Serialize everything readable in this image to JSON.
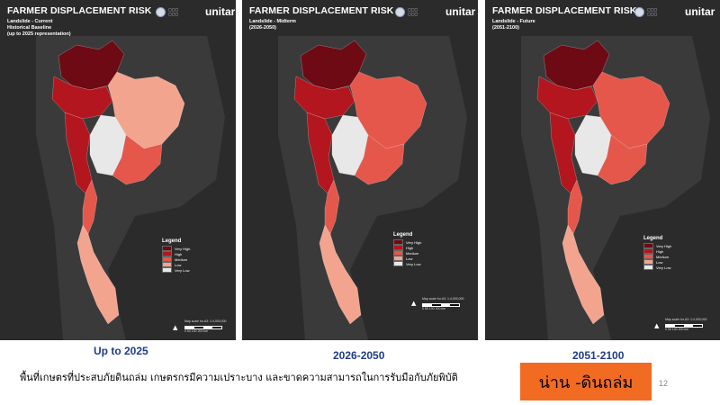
{
  "colors": {
    "very_high": "#6d0a14",
    "high": "#b3161e",
    "medium": "#e4574a",
    "low": "#f3a48e",
    "very_low": "#e8e8e8",
    "background": "#2b2b2b",
    "caption": "#1f3c88",
    "badge": "#f26b22"
  },
  "panels": [
    {
      "title": "FARMER DISPLACEMENT RISK",
      "subtitle": "Landslide - Current\nHistorical Baseline\n(up to 2025 representation)",
      "caption": "Up to 2025",
      "regions": {
        "north": "very_high",
        "northwest": "high",
        "northeast": "low",
        "central": "very_low",
        "west": "high",
        "east": "medium",
        "south_upper": "medium",
        "south_lower": "low"
      }
    },
    {
      "title": "FARMER DISPLACEMENT RISK",
      "subtitle": "Landslide - Midterm\n(2026-2050)",
      "caption": "2026-2050",
      "regions": {
        "north": "very_high",
        "northwest": "high",
        "northeast": "medium",
        "central": "very_low",
        "west": "high",
        "east": "medium",
        "south_upper": "medium",
        "south_lower": "low"
      }
    },
    {
      "title": "FARMER DISPLACEMENT RISK",
      "subtitle": "Landslide - Future\n(2051-2100)",
      "caption": "2051-2100",
      "regions": {
        "north": "very_high",
        "northwest": "high",
        "northeast": "medium",
        "central": "very_low",
        "west": "high",
        "east": "medium",
        "south_upper": "medium",
        "south_lower": "low"
      }
    }
  ],
  "logos": {
    "unitar": "unitar"
  },
  "legend": {
    "title": "Legend",
    "items": [
      {
        "label": "Very High",
        "key": "very_high"
      },
      {
        "label": "High",
        "key": "high"
      },
      {
        "label": "Medium",
        "key": "medium"
      },
      {
        "label": "Low",
        "key": "low"
      },
      {
        "label": "Very Low",
        "key": "very_low"
      }
    ]
  },
  "scale_text": "Map scale for A3: 1:4,000,000",
  "scale_ticks": "0    50    100         200 km",
  "north_arrow": "▲",
  "footer": {
    "thai_text": "พื้นที่เกษตรที่ประสบภัยดินถล่ม  เกษตรกรมีความเปราะบาง และขาดความสามารถในการรับมือกับภัยพิบัติ",
    "badge": "น่าน -ดินถล่ม",
    "page_number": "12"
  }
}
